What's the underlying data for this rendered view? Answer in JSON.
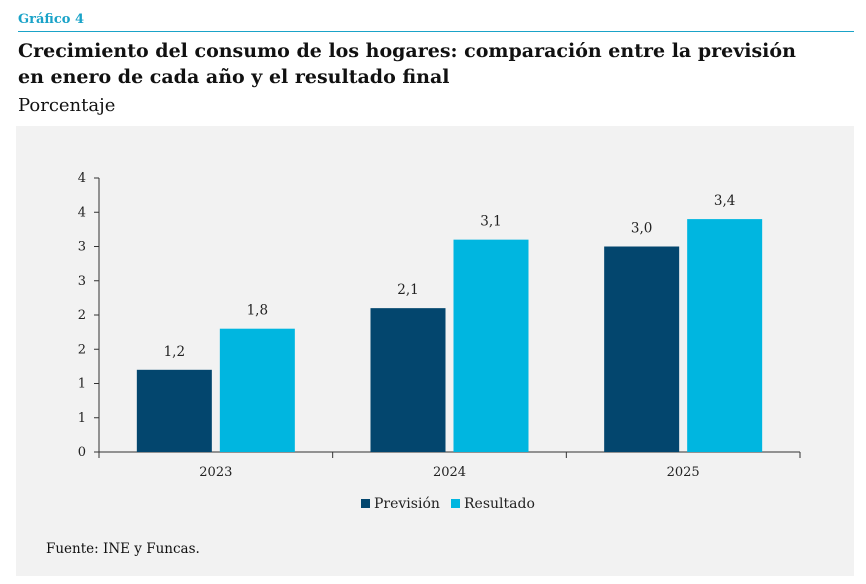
{
  "header": {
    "figure_label": "Gráfico 4",
    "title_line1": "Crecimiento del consumo de los hogares: comparación entre la previsión",
    "title_line2": "en enero de cada año y el resultado final",
    "subtitle": "Porcentaje"
  },
  "footer": {
    "source": "Fuente: INE y Funcas."
  },
  "colors": {
    "prevision": "#03466e",
    "resultado": "#00b6e0",
    "panel": "#f2f2f2",
    "accent": "#1aa3c8"
  },
  "chart_data": {
    "type": "bar",
    "title": "Crecimiento del consumo de los hogares: comparación entre la previsión en enero de cada año y el resultado final",
    "ylabel": "Porcentaje",
    "xlabel": "",
    "categories": [
      "2023",
      "2024",
      "2025"
    ],
    "series": [
      {
        "name": "Previsión",
        "values": [
          1.2,
          2.1,
          3.0
        ],
        "labels": [
          "1,2",
          "2,1",
          "3,0"
        ]
      },
      {
        "name": "Resultado",
        "values": [
          1.8,
          3.1,
          3.4
        ],
        "labels": [
          "1,8",
          "3,1",
          "3,4"
        ]
      }
    ],
    "ylim": [
      0,
      4
    ],
    "y_ticks": [
      0,
      0.5,
      1,
      1.5,
      2,
      2.5,
      3,
      3.5,
      4
    ],
    "y_tick_labels": [
      "0",
      "1",
      "1",
      "2",
      "2",
      "3",
      "3",
      "4",
      "4"
    ],
    "legend_position": "bottom-center",
    "grid": false
  }
}
